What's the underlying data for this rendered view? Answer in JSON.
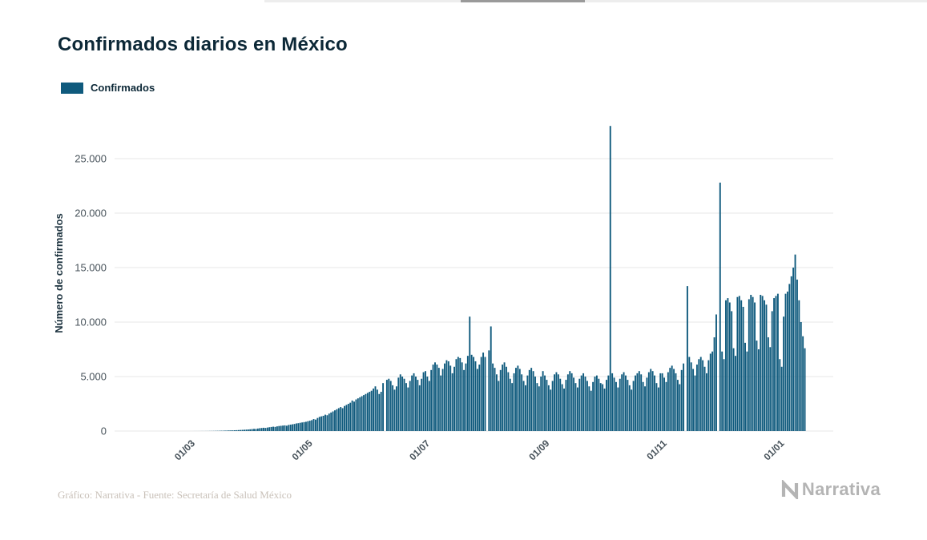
{
  "page": {
    "title": "Confirmados diarios en México",
    "legend": {
      "label": "Confirmados",
      "color": "#0f5a7d"
    },
    "footer": {
      "credit": "Gráfico: Narrativa - Fuente: Secretaría de Salud México",
      "brand": "Narrativa"
    }
  },
  "chart_data": {
    "type": "bar",
    "title": "Confirmados diarios en México",
    "xlabel": "",
    "ylabel": "Número de confirmados",
    "grid": true,
    "legend_position": "top-left",
    "start_date": "2020-01-22",
    "frequency": "daily",
    "x_tick_labels": [
      "01/03",
      "01/05",
      "01/07",
      "01/09",
      "01/11",
      "01/01"
    ],
    "x_tick_indices": [
      39,
      100,
      161,
      223,
      284,
      345
    ],
    "y_ticks": [
      0,
      5000,
      10000,
      15000,
      20000,
      25000
    ],
    "y_tick_labels": [
      "0",
      "5.000",
      "10.000",
      "15.000",
      "20.000",
      "25.000"
    ],
    "ylim": [
      0,
      29000
    ],
    "series": [
      {
        "name": "Confirmados",
        "color": "#0f5a7d",
        "values": [
          0,
          0,
          0,
          0,
          0,
          0,
          0,
          0,
          0,
          0,
          0,
          0,
          0,
          0,
          0,
          0,
          0,
          0,
          0,
          0,
          0,
          0,
          0,
          0,
          0,
          0,
          0,
          0,
          0,
          0,
          0,
          0,
          0,
          0,
          0,
          0,
          0,
          0,
          0,
          1,
          1,
          2,
          2,
          3,
          4,
          5,
          5,
          6,
          8,
          10,
          12,
          15,
          18,
          22,
          26,
          30,
          35,
          40,
          48,
          55,
          60,
          65,
          70,
          80,
          90,
          100,
          110,
          120,
          132,
          145,
          160,
          180,
          200,
          190,
          230,
          260,
          280,
          300,
          285,
          320,
          350,
          375,
          400,
          380,
          430,
          460,
          480,
          500,
          520,
          490,
          560,
          590,
          620,
          650,
          700,
          720,
          760,
          790,
          820,
          850,
          900,
          950,
          1000,
          1100,
          1050,
          1200,
          1300,
          1350,
          1400,
          1500,
          1450,
          1600,
          1700,
          1800,
          1900,
          2000,
          2100,
          2200,
          2100,
          2300,
          2400,
          2500,
          2600,
          2800,
          2700,
          2900,
          3000,
          3100,
          3200,
          3300,
          3400,
          3500,
          3600,
          3700,
          3900,
          4100,
          3800,
          3400,
          3600,
          4400,
          0,
          4700,
          4800,
          4600,
          4200,
          3800,
          4100,
          4900,
          5200,
          5000,
          4800,
          4400,
          4000,
          4600,
          5100,
          5300,
          5000,
          4700,
          4200,
          4800,
          5400,
          5500,
          5000,
          4600,
          5600,
          6100,
          6300,
          6100,
          5800,
          5100,
          5700,
          6200,
          6500,
          6400,
          6000,
          5300,
          5900,
          6600,
          6800,
          6700,
          6300,
          5600,
          6200,
          6900,
          10500,
          7000,
          6800,
          6400,
          5700,
          6100,
          6800,
          7200,
          6800,
          0,
          7400,
          9600,
          6200,
          5800,
          5200,
          4600,
          5600,
          6100,
          6300,
          5900,
          5400,
          4800,
          4400,
          5300,
          5800,
          6000,
          5700,
          5200,
          4600,
          4200,
          5100,
          5600,
          5800,
          5500,
          5000,
          4400,
          4100,
          5000,
          5500,
          5100,
          4700,
          4200,
          3800,
          4600,
          5200,
          5400,
          5200,
          4800,
          4300,
          3900,
          4700,
          5200,
          5500,
          5300,
          4900,
          4400,
          4000,
          4800,
          5100,
          5300,
          5000,
          4600,
          4100,
          3700,
          4500,
          5000,
          5100,
          4800,
          4400,
          4300,
          3900,
          4700,
          5100,
          28000,
          5300,
          4900,
          4500,
          4000,
          4800,
          5200,
          5400,
          5100,
          4700,
          4200,
          3800,
          4600,
          5100,
          5300,
          5500,
          5200,
          4500,
          4100,
          4900,
          5400,
          5700,
          5500,
          5100,
          4400,
          4000,
          5300,
          5300,
          4900,
          4500,
          5400,
          5800,
          6000,
          5700,
          5300,
          4700,
          4300,
          5600,
          6200,
          0,
          13300,
          6800,
          6300,
          5700,
          5100,
          6100,
          6600,
          6800,
          6500,
          5900,
          5300,
          6500,
          7100,
          7300,
          8600,
          10700,
          0,
          22800,
          7300,
          6600,
          12000,
          12200,
          11800,
          11000,
          7600,
          6900,
          12300,
          12400,
          12000,
          11400,
          8100,
          7300,
          12100,
          12500,
          12300,
          11800,
          8300,
          7500,
          12500,
          12400,
          12000,
          11600,
          8600,
          7700,
          11000,
          12200,
          12400,
          12600,
          6600,
          5900,
          10500,
          12600,
          12800,
          13500,
          14200,
          15000,
          16200,
          13900,
          12000,
          10000,
          8700,
          7600
        ]
      }
    ]
  }
}
